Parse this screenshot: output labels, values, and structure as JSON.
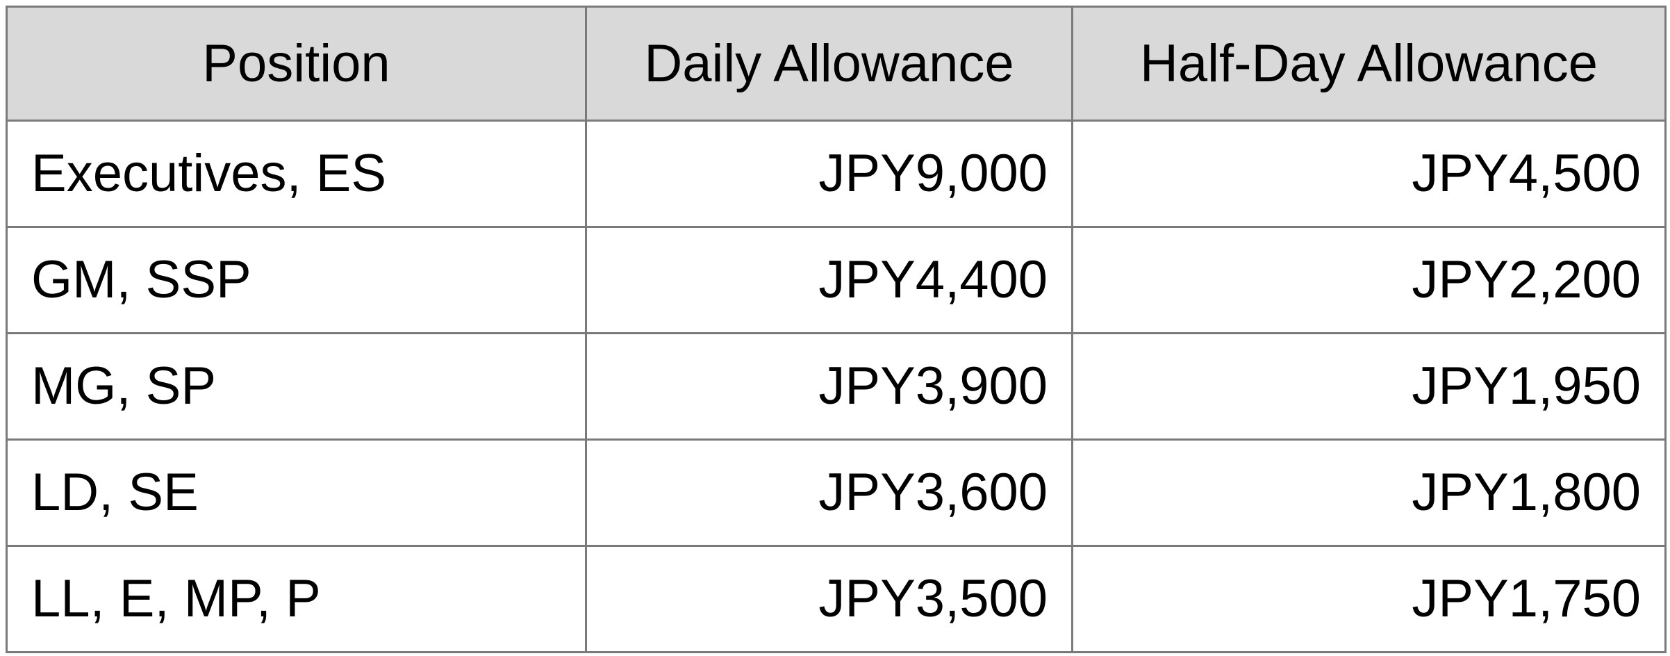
{
  "table": {
    "headers": [
      "Position",
      "Daily Allowance",
      "Half-Day Allowance"
    ],
    "rows": [
      {
        "position": "Executives, ES",
        "daily": "JPY9,000",
        "half_day": "JPY4,500"
      },
      {
        "position": "GM, SSP",
        "daily": "JPY4,400",
        "half_day": "JPY2,200"
      },
      {
        "position": "MG, SP",
        "daily": "JPY3,900",
        "half_day": "JPY1,950"
      },
      {
        "position": "LD, SE",
        "daily": "JPY3,600",
        "half_day": "JPY1,800"
      },
      {
        "position": "LL, E, MP, P",
        "daily": "JPY3,500",
        "half_day": "JPY1,750"
      }
    ],
    "colors": {
      "header_background": "#d9d9d9",
      "border": "#7a7a7a",
      "text": "#000000"
    }
  }
}
